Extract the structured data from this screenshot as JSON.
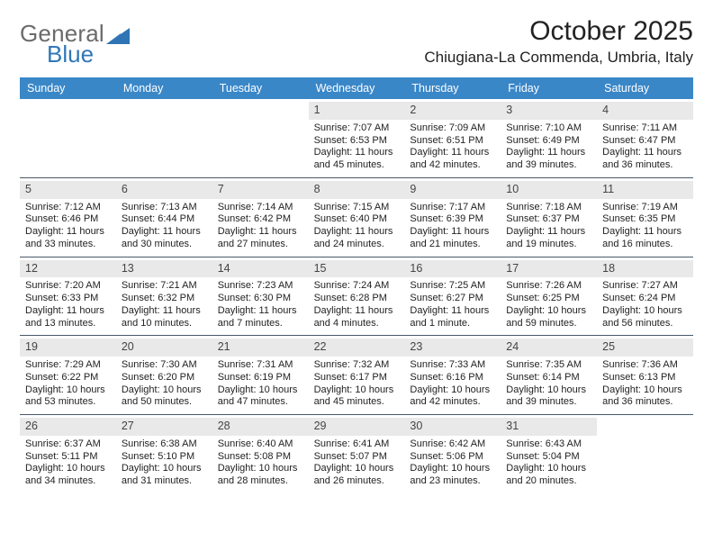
{
  "logo": {
    "word1": "General",
    "word2": "Blue",
    "word1_color": "#6b6b6b",
    "word2_color": "#3077b8",
    "triangle_color": "#2f74b5"
  },
  "title": "October 2025",
  "location": "Chiugiana-La Commenda, Umbria, Italy",
  "header_bg": "#3a87c8",
  "header_fg": "#ffffff",
  "daynum_bg": "#e9e9e9",
  "rule_color": "#4a5a6a",
  "day_labels": [
    "Sunday",
    "Monday",
    "Tuesday",
    "Wednesday",
    "Thursday",
    "Friday",
    "Saturday"
  ],
  "weeks": [
    [
      {
        "empty": true
      },
      {
        "empty": true
      },
      {
        "empty": true
      },
      {
        "n": "1",
        "sunrise": "Sunrise: 7:07 AM",
        "sunset": "Sunset: 6:53 PM",
        "daylight": "Daylight: 11 hours and 45 minutes."
      },
      {
        "n": "2",
        "sunrise": "Sunrise: 7:09 AM",
        "sunset": "Sunset: 6:51 PM",
        "daylight": "Daylight: 11 hours and 42 minutes."
      },
      {
        "n": "3",
        "sunrise": "Sunrise: 7:10 AM",
        "sunset": "Sunset: 6:49 PM",
        "daylight": "Daylight: 11 hours and 39 minutes."
      },
      {
        "n": "4",
        "sunrise": "Sunrise: 7:11 AM",
        "sunset": "Sunset: 6:47 PM",
        "daylight": "Daylight: 11 hours and 36 minutes."
      }
    ],
    [
      {
        "n": "5",
        "sunrise": "Sunrise: 7:12 AM",
        "sunset": "Sunset: 6:46 PM",
        "daylight": "Daylight: 11 hours and 33 minutes."
      },
      {
        "n": "6",
        "sunrise": "Sunrise: 7:13 AM",
        "sunset": "Sunset: 6:44 PM",
        "daylight": "Daylight: 11 hours and 30 minutes."
      },
      {
        "n": "7",
        "sunrise": "Sunrise: 7:14 AM",
        "sunset": "Sunset: 6:42 PM",
        "daylight": "Daylight: 11 hours and 27 minutes."
      },
      {
        "n": "8",
        "sunrise": "Sunrise: 7:15 AM",
        "sunset": "Sunset: 6:40 PM",
        "daylight": "Daylight: 11 hours and 24 minutes."
      },
      {
        "n": "9",
        "sunrise": "Sunrise: 7:17 AM",
        "sunset": "Sunset: 6:39 PM",
        "daylight": "Daylight: 11 hours and 21 minutes."
      },
      {
        "n": "10",
        "sunrise": "Sunrise: 7:18 AM",
        "sunset": "Sunset: 6:37 PM",
        "daylight": "Daylight: 11 hours and 19 minutes."
      },
      {
        "n": "11",
        "sunrise": "Sunrise: 7:19 AM",
        "sunset": "Sunset: 6:35 PM",
        "daylight": "Daylight: 11 hours and 16 minutes."
      }
    ],
    [
      {
        "n": "12",
        "sunrise": "Sunrise: 7:20 AM",
        "sunset": "Sunset: 6:33 PM",
        "daylight": "Daylight: 11 hours and 13 minutes."
      },
      {
        "n": "13",
        "sunrise": "Sunrise: 7:21 AM",
        "sunset": "Sunset: 6:32 PM",
        "daylight": "Daylight: 11 hours and 10 minutes."
      },
      {
        "n": "14",
        "sunrise": "Sunrise: 7:23 AM",
        "sunset": "Sunset: 6:30 PM",
        "daylight": "Daylight: 11 hours and 7 minutes."
      },
      {
        "n": "15",
        "sunrise": "Sunrise: 7:24 AM",
        "sunset": "Sunset: 6:28 PM",
        "daylight": "Daylight: 11 hours and 4 minutes."
      },
      {
        "n": "16",
        "sunrise": "Sunrise: 7:25 AM",
        "sunset": "Sunset: 6:27 PM",
        "daylight": "Daylight: 11 hours and 1 minute."
      },
      {
        "n": "17",
        "sunrise": "Sunrise: 7:26 AM",
        "sunset": "Sunset: 6:25 PM",
        "daylight": "Daylight: 10 hours and 59 minutes."
      },
      {
        "n": "18",
        "sunrise": "Sunrise: 7:27 AM",
        "sunset": "Sunset: 6:24 PM",
        "daylight": "Daylight: 10 hours and 56 minutes."
      }
    ],
    [
      {
        "n": "19",
        "sunrise": "Sunrise: 7:29 AM",
        "sunset": "Sunset: 6:22 PM",
        "daylight": "Daylight: 10 hours and 53 minutes."
      },
      {
        "n": "20",
        "sunrise": "Sunrise: 7:30 AM",
        "sunset": "Sunset: 6:20 PM",
        "daylight": "Daylight: 10 hours and 50 minutes."
      },
      {
        "n": "21",
        "sunrise": "Sunrise: 7:31 AM",
        "sunset": "Sunset: 6:19 PM",
        "daylight": "Daylight: 10 hours and 47 minutes."
      },
      {
        "n": "22",
        "sunrise": "Sunrise: 7:32 AM",
        "sunset": "Sunset: 6:17 PM",
        "daylight": "Daylight: 10 hours and 45 minutes."
      },
      {
        "n": "23",
        "sunrise": "Sunrise: 7:33 AM",
        "sunset": "Sunset: 6:16 PM",
        "daylight": "Daylight: 10 hours and 42 minutes."
      },
      {
        "n": "24",
        "sunrise": "Sunrise: 7:35 AM",
        "sunset": "Sunset: 6:14 PM",
        "daylight": "Daylight: 10 hours and 39 minutes."
      },
      {
        "n": "25",
        "sunrise": "Sunrise: 7:36 AM",
        "sunset": "Sunset: 6:13 PM",
        "daylight": "Daylight: 10 hours and 36 minutes."
      }
    ],
    [
      {
        "n": "26",
        "sunrise": "Sunrise: 6:37 AM",
        "sunset": "Sunset: 5:11 PM",
        "daylight": "Daylight: 10 hours and 34 minutes."
      },
      {
        "n": "27",
        "sunrise": "Sunrise: 6:38 AM",
        "sunset": "Sunset: 5:10 PM",
        "daylight": "Daylight: 10 hours and 31 minutes."
      },
      {
        "n": "28",
        "sunrise": "Sunrise: 6:40 AM",
        "sunset": "Sunset: 5:08 PM",
        "daylight": "Daylight: 10 hours and 28 minutes."
      },
      {
        "n": "29",
        "sunrise": "Sunrise: 6:41 AM",
        "sunset": "Sunset: 5:07 PM",
        "daylight": "Daylight: 10 hours and 26 minutes."
      },
      {
        "n": "30",
        "sunrise": "Sunrise: 6:42 AM",
        "sunset": "Sunset: 5:06 PM",
        "daylight": "Daylight: 10 hours and 23 minutes."
      },
      {
        "n": "31",
        "sunrise": "Sunrise: 6:43 AM",
        "sunset": "Sunset: 5:04 PM",
        "daylight": "Daylight: 10 hours and 20 minutes."
      },
      {
        "empty": true
      }
    ]
  ]
}
